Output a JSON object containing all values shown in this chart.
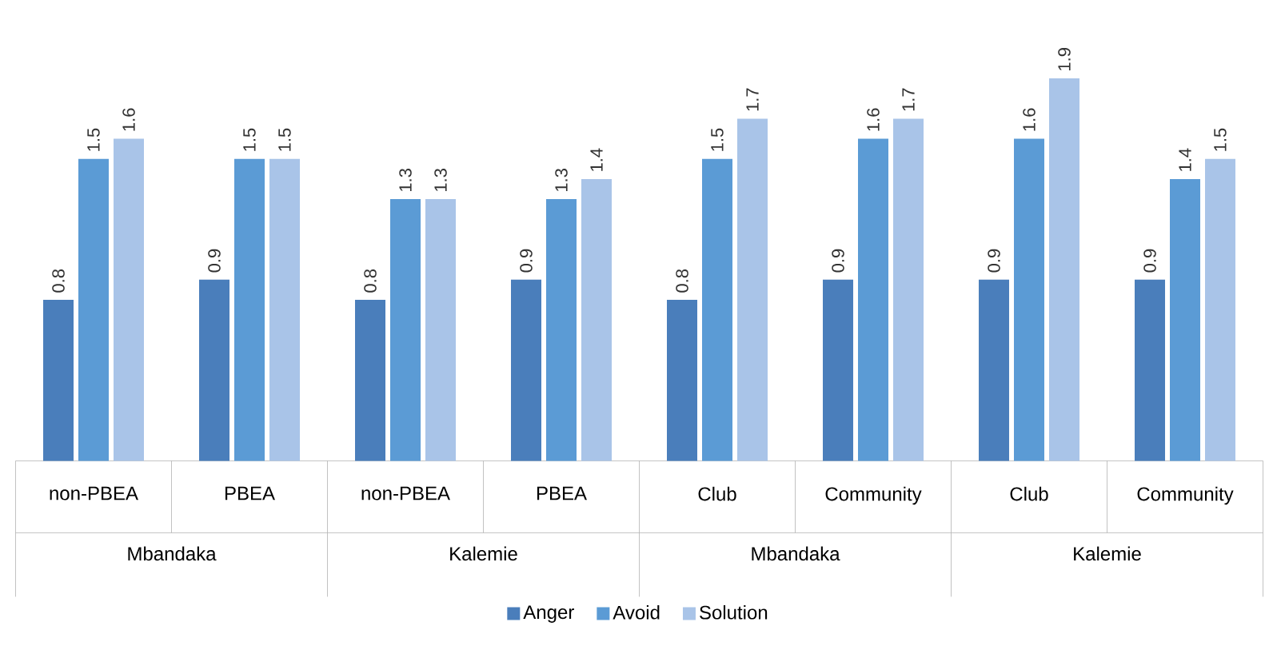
{
  "chart_data": {
    "type": "bar",
    "categories": [
      "non-PBEA",
      "PBEA",
      "non-PBEA",
      "PBEA",
      "Club",
      "Community",
      "Club",
      "Community"
    ],
    "annotations": [
      "Mbandaka",
      "Kalemie",
      "Mbandaka",
      "Kalemie"
    ],
    "series": [
      {
        "name": "Anger",
        "color": "#4a7ebb",
        "values": [
          0.8,
          0.9,
          0.8,
          0.9,
          0.8,
          0.9,
          0.9,
          0.9
        ]
      },
      {
        "name": "Avoid",
        "color": "#5b9bd5",
        "values": [
          1.5,
          1.5,
          1.3,
          1.3,
          1.5,
          1.6,
          1.6,
          1.4
        ]
      },
      {
        "name": "Solution",
        "color": "#a9c4e8",
        "values": [
          1.6,
          1.5,
          1.3,
          1.4,
          1.7,
          1.7,
          1.9,
          1.5
        ]
      }
    ],
    "data_labels": true,
    "legend": "bottom"
  }
}
